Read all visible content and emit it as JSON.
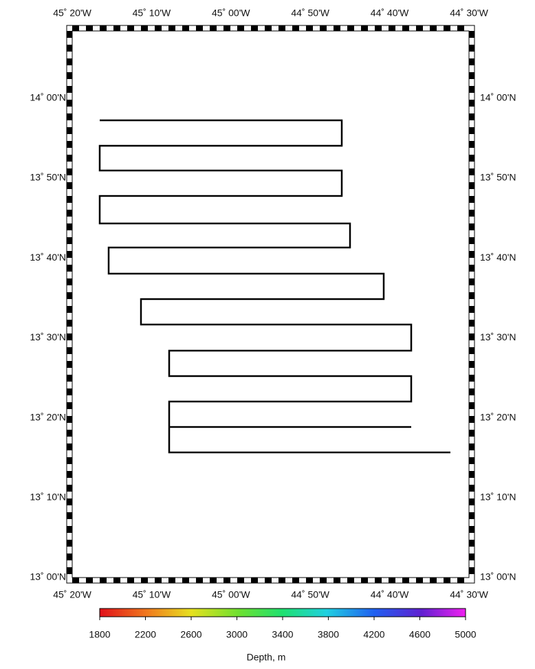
{
  "map": {
    "lon_labels": [
      "45˚ 20'W",
      "45˚ 10'W",
      "45˚ 00'W",
      "44˚ 50'W",
      "44˚ 40'W",
      "44˚ 30'W"
    ],
    "lat_labels": [
      "14˚ 00'N",
      "13˚ 50'N",
      "13˚ 40'N",
      "13˚ 30'N",
      "13˚ 20'N",
      "13˚ 10'N",
      "13˚ 00'N"
    ]
  },
  "colorbar": {
    "range": [
      1800,
      5000
    ],
    "ticks": [
      1800,
      2200,
      2600,
      3000,
      3400,
      3800,
      4200,
      4600,
      5000
    ],
    "label": "Depth, m"
  }
}
